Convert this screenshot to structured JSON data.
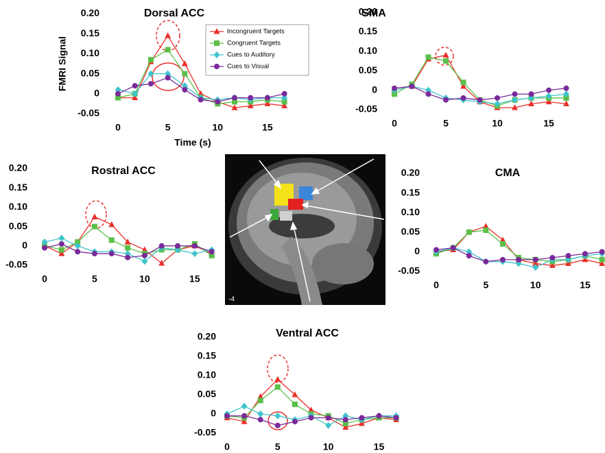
{
  "chart_data": [
    {
      "type": "line",
      "title": "Dorsal ACC",
      "xlabel": "Time (s)",
      "ylabel": "FMRI Signal",
      "legend": "top-right",
      "x": [
        0,
        1.7,
        3.3,
        5,
        6.7,
        8.3,
        10,
        11.7,
        13.3,
        15,
        16.7
      ],
      "xlim": [
        0,
        17
      ],
      "xticks": [
        0,
        5,
        10,
        15
      ],
      "ylim": [
        -0.05,
        0.2
      ],
      "yticks": [
        {
          "value": 0.2,
          "label": "0.20"
        },
        0.15,
        {
          "value": 0.1,
          "label": "0.10"
        },
        0.05,
        0,
        -0.05
      ],
      "series": [
        {
          "name": "Incongruent Targets",
          "color": "#e8302a",
          "marker": "triangle",
          "values": [
            -0.01,
            -0.01,
            0.08,
            0.145,
            0.075,
            0.0,
            -0.02,
            -0.035,
            -0.03,
            -0.025,
            -0.03
          ]
        },
        {
          "name": "Congruent Targets",
          "color": "#5cbf4a",
          "marker": "square",
          "values": [
            -0.01,
            0.0,
            0.085,
            0.11,
            0.05,
            -0.01,
            -0.025,
            -0.02,
            -0.02,
            -0.015,
            -0.02
          ]
        },
        {
          "name": "Cues to Auditory",
          "color": "#40c4cc",
          "marker": "diamond",
          "values": [
            0.01,
            0.0,
            0.05,
            0.05,
            0.02,
            -0.01,
            -0.015,
            -0.01,
            -0.015,
            -0.01,
            -0.01
          ]
        },
        {
          "name": "Cues to Visual",
          "color": "#7a2a9a",
          "marker": "circle",
          "values": [
            0.0,
            0.02,
            0.025,
            0.04,
            0.01,
            -0.015,
            -0.02,
            -0.01,
            -0.01,
            -0.01,
            0.0
          ]
        }
      ]
    },
    {
      "type": "line",
      "title": "SMA",
      "x": [
        0,
        1.7,
        3.3,
        5,
        6.7,
        8.3,
        10,
        11.7,
        13.3,
        15,
        16.7
      ],
      "xlim": [
        0,
        17
      ],
      "xticks": [
        0,
        5,
        10,
        15
      ],
      "ylim": [
        -0.05,
        0.2
      ],
      "yticks": [
        {
          "value": 0.2,
          "label": "0.20"
        },
        0.15,
        {
          "value": 0.1,
          "label": "0.10"
        },
        0.05,
        0,
        -0.05
      ],
      "series": [
        {
          "color": "#e8302a",
          "marker": "triangle",
          "values": [
            0.0,
            0.01,
            0.08,
            0.09,
            0.01,
            -0.03,
            -0.045,
            -0.045,
            -0.035,
            -0.03,
            -0.035
          ]
        },
        {
          "color": "#5cbf4a",
          "marker": "square",
          "values": [
            -0.01,
            0.015,
            0.085,
            0.075,
            0.02,
            -0.025,
            -0.04,
            -0.025,
            -0.02,
            -0.02,
            -0.02
          ]
        },
        {
          "color": "#40c4cc",
          "marker": "diamond",
          "values": [
            0.0,
            0.01,
            0.0,
            -0.02,
            -0.025,
            -0.03,
            -0.035,
            -0.025,
            -0.02,
            -0.015,
            -0.01
          ]
        },
        {
          "color": "#7a2a9a",
          "marker": "circle",
          "values": [
            0.005,
            0.01,
            -0.01,
            -0.025,
            -0.02,
            -0.025,
            -0.02,
            -0.01,
            -0.01,
            0.0,
            0.005
          ]
        }
      ]
    },
    {
      "type": "line",
      "title": "Rostral ACC",
      "x": [
        0,
        1.7,
        3.3,
        5,
        6.7,
        8.3,
        10,
        11.7,
        13.3,
        15,
        16.7
      ],
      "xlim": [
        0,
        17
      ],
      "xticks": [
        0,
        5,
        10,
        15
      ],
      "ylim": [
        -0.05,
        0.2
      ],
      "yticks": [
        {
          "value": 0.2,
          "label": "0.20"
        },
        0.15,
        {
          "value": 0.1,
          "label": "0.10"
        },
        0.05,
        0,
        -0.05
      ],
      "series": [
        {
          "color": "#e8302a",
          "marker": "triangle",
          "values": [
            0.0,
            -0.02,
            0.01,
            0.075,
            0.055,
            0.01,
            -0.01,
            -0.045,
            -0.01,
            0.0,
            -0.02
          ]
        },
        {
          "color": "#5cbf4a",
          "marker": "square",
          "values": [
            0.0,
            -0.01,
            0.01,
            0.05,
            0.015,
            -0.005,
            -0.02,
            -0.01,
            -0.01,
            0.005,
            -0.025
          ]
        },
        {
          "color": "#40c4cc",
          "marker": "diamond",
          "values": [
            0.01,
            0.02,
            0.0,
            -0.015,
            -0.015,
            -0.02,
            -0.04,
            -0.005,
            -0.01,
            -0.02,
            -0.01
          ]
        },
        {
          "color": "#7a2a9a",
          "marker": "circle",
          "values": [
            -0.005,
            0.005,
            -0.015,
            -0.02,
            -0.02,
            -0.03,
            -0.025,
            0.0,
            0.0,
            0.0,
            -0.015
          ]
        }
      ]
    },
    {
      "type": "line",
      "title": "CMA",
      "x": [
        0,
        1.7,
        3.3,
        5,
        6.7,
        8.3,
        10,
        11.7,
        13.3,
        15,
        16.7
      ],
      "xlim": [
        0,
        17
      ],
      "xticks": [
        0,
        5,
        10,
        15
      ],
      "ylim": [
        -0.05,
        0.2
      ],
      "yticks": [
        {
          "value": 0.2,
          "label": "0.20"
        },
        0.15,
        {
          "value": 0.1,
          "label": "0.10"
        },
        0.05,
        0,
        -0.05
      ],
      "series": [
        {
          "color": "#e8302a",
          "marker": "triangle",
          "values": [
            0.0,
            0.005,
            0.05,
            0.065,
            0.03,
            -0.02,
            -0.03,
            -0.035,
            -0.03,
            -0.02,
            -0.03
          ]
        },
        {
          "color": "#5cbf4a",
          "marker": "square",
          "values": [
            -0.005,
            0.01,
            0.05,
            0.055,
            0.02,
            -0.015,
            -0.02,
            -0.025,
            -0.02,
            -0.01,
            -0.02
          ]
        },
        {
          "color": "#40c4cc",
          "marker": "diamond",
          "values": [
            0.0,
            0.01,
            0.0,
            -0.025,
            -0.025,
            -0.03,
            -0.04,
            -0.02,
            -0.02,
            -0.01,
            -0.005
          ]
        },
        {
          "color": "#7a2a9a",
          "marker": "circle",
          "values": [
            0.005,
            0.01,
            -0.01,
            -0.025,
            -0.02,
            -0.02,
            -0.02,
            -0.015,
            -0.01,
            -0.005,
            0.0
          ]
        }
      ]
    },
    {
      "type": "line",
      "title": "Ventral ACC",
      "x": [
        0,
        1.7,
        3.3,
        5,
        6.7,
        8.3,
        10,
        11.7,
        13.3,
        15,
        16.7
      ],
      "xlim": [
        0,
        17
      ],
      "xticks": [
        0,
        5,
        10,
        15
      ],
      "ylim": [
        -0.05,
        0.2
      ],
      "yticks": [
        {
          "value": 0.2,
          "label": "0.20"
        },
        0.15,
        {
          "value": 0.1,
          "label": "0.10"
        },
        0.05,
        0,
        -0.05
      ],
      "series": [
        {
          "color": "#e8302a",
          "marker": "triangle",
          "values": [
            -0.01,
            -0.02,
            0.045,
            0.09,
            0.05,
            0.01,
            -0.01,
            -0.035,
            -0.025,
            -0.01,
            -0.015
          ]
        },
        {
          "color": "#5cbf4a",
          "marker": "square",
          "values": [
            -0.005,
            -0.01,
            0.035,
            0.07,
            0.025,
            0.0,
            -0.005,
            -0.025,
            -0.015,
            -0.01,
            -0.01
          ]
        },
        {
          "color": "#40c4cc",
          "marker": "diamond",
          "values": [
            0.0,
            0.02,
            0.0,
            -0.005,
            -0.015,
            -0.005,
            -0.03,
            -0.005,
            -0.015,
            -0.005,
            -0.005
          ]
        },
        {
          "color": "#7a2a9a",
          "marker": "circle",
          "values": [
            -0.005,
            -0.005,
            -0.015,
            -0.03,
            -0.02,
            -0.01,
            -0.01,
            -0.015,
            -0.01,
            -0.005,
            -0.01
          ]
        }
      ]
    }
  ],
  "brain_image": {
    "slice_label": "-4"
  }
}
